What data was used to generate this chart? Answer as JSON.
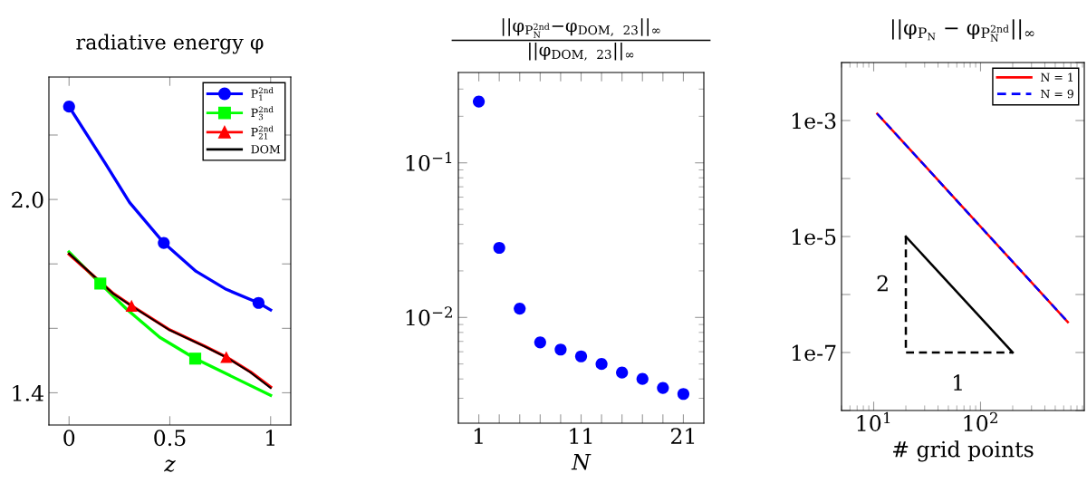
{
  "chart_data": [
    {
      "type": "line",
      "title": "radiative energy φ",
      "xlabel": "z",
      "xlim": [
        -0.1,
        1.1
      ],
      "ylim": [
        1.3,
        2.38
      ],
      "xticks": [
        0,
        0.5,
        1
      ],
      "yticks": [
        {
          "value": 1.4,
          "label": "1.4"
        },
        {
          "value": 1.6,
          "label": null
        },
        {
          "value": 1.8,
          "label": null
        },
        {
          "value": 2.0,
          "label": "2.0"
        },
        {
          "value": 2.2,
          "label": null
        }
      ],
      "legend": "top right",
      "series": [
        {
          "name": "P$^{2nd}$$_{1}$",
          "color": "#0000ff",
          "type": "line",
          "x": [
            0,
            0.18,
            0.3,
            0.47,
            0.63,
            0.78,
            0.94,
            1.0
          ],
          "values": [
            2.288,
            2.112,
            1.991,
            1.865,
            1.777,
            1.721,
            1.679,
            1.657
          ]
        },
        {
          "name": "P$^{2nd}$$_{3}$",
          "color": "#00ff00",
          "type": "line",
          "x": [
            0,
            0.155,
            0.285,
            0.45,
            0.626,
            1.0
          ],
          "values": [
            1.837,
            1.739,
            1.66,
            1.572,
            1.506,
            1.392
          ]
        },
        {
          "name": "P$^{2nd}$$_{21}$",
          "color": "#ff0000",
          "type": "line",
          "x": [
            0,
            0.22,
            0.31,
            0.5,
            0.675,
            0.78,
            0.9,
            1.0
          ],
          "values": [
            1.83,
            1.708,
            1.67,
            1.595,
            1.544,
            1.511,
            1.465,
            1.418
          ]
        },
        {
          "name": "DOM",
          "color": "#000000",
          "type": "line",
          "x": [
            0,
            0.22,
            0.31,
            0.5,
            0.675,
            0.78,
            0.9,
            1.0
          ],
          "values": [
            1.832,
            1.707,
            1.669,
            1.594,
            1.543,
            1.51,
            1.463,
            1.415
          ]
        },
        {
          "color": "#0000ff",
          "type": "scatter",
          "marker": "circle",
          "x": [
            0,
            0.47,
            0.94
          ],
          "values": [
            2.288,
            1.865,
            1.679
          ]
        },
        {
          "color": "#00ff00",
          "type": "scatter",
          "marker": "square",
          "x": [
            0.155,
            0.626
          ],
          "values": [
            1.739,
            1.506
          ]
        },
        {
          "color": "#ff0000",
          "type": "scatter",
          "marker": "triangle",
          "x": [
            0.31,
            0.78
          ],
          "values": [
            1.67,
            1.511
          ]
        }
      ]
    },
    {
      "type": "scatter",
      "title": "||φ$_{P}$$^{2nd}$$_{N}$−φ$_{DOM, 23}$||$_{∞}$",
      "subtitle": "||φ$_{DOM, 23}$||$_{∞}$",
      "xlabel": "N",
      "log": "y",
      "marker": "circle",
      "xlim": [
        -1,
        23
      ],
      "ylim": [
        0.00207,
        0.384
      ],
      "xticks": [
        1,
        {
          "value": 3,
          "label": null
        },
        {
          "value": 5,
          "label": null
        },
        {
          "value": 7,
          "label": null
        },
        {
          "value": 9,
          "label": null
        },
        11,
        {
          "value": 13,
          "label": null
        },
        {
          "value": 15,
          "label": null
        },
        {
          "value": 17,
          "label": null
        },
        {
          "value": 19,
          "label": null
        },
        21
      ],
      "yticks": [
        {
          "value": 0.01,
          "label": "10$^{−2}$"
        },
        {
          "value": 0.1,
          "label": "10$^{−1}$"
        }
      ],
      "series": [
        {
          "color": "#0000ff",
          "x": [
            1,
            3,
            5,
            7,
            9,
            11,
            13,
            15,
            17,
            19,
            21
          ],
          "values": [
            0.249,
            0.0282,
            0.0114,
            0.0069,
            0.0062,
            0.0056,
            0.005,
            0.0044,
            0.004,
            0.0035,
            0.0032
          ]
        }
      ]
    },
    {
      "type": "line",
      "title": "||φ$_{P}$$_{N}$ − φ$_{P}$$^{2nd}$$_{N}$||$_{∞}$",
      "xlabel": "# grid points",
      "log": "xy",
      "legend": "top right",
      "xlim": [
        5,
        935
      ],
      "ylim": [
        1e-08,
        0.01
      ],
      "xticks": [
        {
          "value": 10,
          "label": "10$^{1}$"
        },
        {
          "value": 100,
          "label": "10$^{2}$"
        }
      ],
      "yticks": [
        {
          "value": 1e-08,
          "label": null
        },
        {
          "value": 1e-07,
          "label": "1e-7"
        },
        {
          "value": 1e-06,
          "label": null
        },
        {
          "value": 1e-05,
          "label": "1e-5"
        },
        {
          "value": 0.0001,
          "label": null
        },
        {
          "value": 0.001,
          "label": "1e-3"
        },
        {
          "value": 0.01,
          "label": null
        }
      ],
      "annotations": [
        "2",
        "1"
      ],
      "series": [
        {
          "name": "N = 1",
          "color": "#ff0000",
          "line_style": "solid",
          "x": [
            10.8,
            656
          ],
          "values": [
            0.00131,
            3.35e-07
          ]
        },
        {
          "name": "N = 9",
          "color": "#0000ff",
          "line_style": "dashed",
          "x": [
            10.8,
            656
          ],
          "values": [
            0.00131,
            3.35e-07
          ]
        },
        {
          "color": "#000000",
          "line_style": "solid",
          "x": [
            20,
            200
          ],
          "values": [
            1e-05,
            1e-07
          ]
        },
        {
          "color": "#000000",
          "line_style": "dashed",
          "x": [
            20,
            20,
            200
          ],
          "values": [
            1e-05,
            1e-07,
            1e-07
          ]
        }
      ]
    }
  ]
}
